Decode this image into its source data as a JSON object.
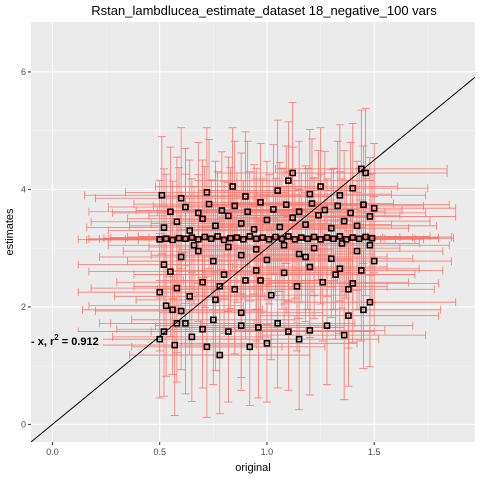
{
  "chart_data": {
    "type": "scatter",
    "title": "Rstan_lambdlucea_estimate_dataset 18_negative_100 vars",
    "xlabel": "original",
    "ylabel": "estimates",
    "xlim": [
      -0.1,
      1.97
    ],
    "ylim": [
      -0.3,
      6.85
    ],
    "x_ticks": [
      0.0,
      0.5,
      1.0,
      1.5
    ],
    "x_tick_labels": [
      "0.0",
      "0.5",
      "1.0",
      "1.5"
    ],
    "y_ticks": [
      0,
      2,
      4,
      6
    ],
    "y_tick_labels": [
      "0",
      "2",
      "4",
      "6"
    ],
    "grid": true,
    "legend": "none",
    "reference_line": {
      "slope": 3,
      "intercept": 0
    },
    "annotation": {
      "text_prefix": "- x,  r",
      "sup": "2",
      "text_suffix": " = 0.912"
    },
    "error_bar_color": "#f8766d",
    "point_color": "#000000",
    "panel_color": "#ebebeb",
    "points": [
      [
        0.5,
        1.45,
        0.35,
        1.0
      ],
      [
        0.52,
        1.58,
        0.4,
        1.1
      ],
      [
        0.57,
        1.35,
        0.38,
        1.2
      ],
      [
        0.58,
        1.72,
        0.36,
        1.0
      ],
      [
        0.56,
        1.95,
        0.42,
        1.1
      ],
      [
        0.62,
        1.72,
        0.35,
        1.2
      ],
      [
        0.6,
        1.93,
        0.4,
        1.0
      ],
      [
        0.65,
        1.49,
        0.37,
        1.1
      ],
      [
        0.7,
        1.62,
        0.4,
        1.0
      ],
      [
        0.72,
        1.32,
        0.35,
        1.2
      ],
      [
        0.75,
        1.78,
        0.38,
        1.1
      ],
      [
        0.78,
        1.18,
        0.42,
        1.0
      ],
      [
        0.82,
        1.58,
        0.36,
        1.2
      ],
      [
        0.88,
        1.68,
        0.4,
        1.1
      ],
      [
        0.92,
        1.32,
        0.35,
        1.0
      ],
      [
        0.88,
        1.9,
        0.38,
        1.1
      ],
      [
        0.96,
        1.65,
        0.4,
        1.2
      ],
      [
        1.0,
        1.38,
        0.42,
        1.0
      ],
      [
        1.05,
        1.72,
        0.36,
        1.1
      ],
      [
        1.1,
        1.58,
        0.4,
        1.0
      ],
      [
        1.15,
        1.45,
        0.37,
        1.2
      ],
      [
        1.2,
        1.6,
        0.35,
        1.1
      ],
      [
        1.28,
        1.68,
        0.4,
        1.0
      ],
      [
        1.36,
        1.52,
        0.38,
        1.1
      ],
      [
        1.38,
        1.85,
        0.42,
        1.2
      ],
      [
        1.45,
        1.95,
        0.36,
        1.0
      ],
      [
        1.48,
        2.08,
        0.4,
        1.1
      ],
      [
        0.5,
        2.25,
        0.38,
        1.0
      ],
      [
        0.53,
        2.02,
        0.36,
        1.2
      ],
      [
        0.58,
        2.32,
        0.4,
        1.1
      ],
      [
        0.64,
        2.18,
        0.35,
        1.0
      ],
      [
        0.7,
        2.42,
        0.4,
        1.1
      ],
      [
        0.76,
        2.12,
        0.37,
        1.2
      ],
      [
        0.8,
        2.55,
        0.42,
        1.0
      ],
      [
        0.85,
        2.3,
        0.36,
        1.1
      ],
      [
        0.9,
        2.45,
        0.38,
        1.0
      ],
      [
        0.95,
        2.62,
        0.4,
        1.2
      ],
      [
        1.02,
        2.2,
        0.35,
        1.1
      ],
      [
        1.08,
        2.58,
        0.38,
        1.0
      ],
      [
        1.14,
        2.35,
        0.42,
        1.1
      ],
      [
        1.2,
        2.68,
        0.36,
        1.2
      ],
      [
        1.26,
        2.42,
        0.4,
        1.0
      ],
      [
        1.32,
        2.55,
        0.37,
        1.1
      ],
      [
        1.38,
        2.3,
        0.4,
        1.0
      ],
      [
        1.44,
        2.62,
        0.38,
        1.2
      ],
      [
        1.5,
        2.78,
        0.36,
        1.1
      ],
      [
        0.52,
        2.72,
        0.4,
        1.0
      ],
      [
        0.6,
        2.85,
        0.38,
        1.1
      ],
      [
        0.68,
        2.95,
        0.35,
        1.2
      ],
      [
        0.75,
        2.78,
        0.4,
        1.0
      ],
      [
        0.82,
        3.02,
        0.37,
        1.1
      ],
      [
        0.88,
        2.88,
        0.42,
        1.0
      ],
      [
        0.95,
        2.98,
        0.36,
        1.2
      ],
      [
        1.0,
        2.8,
        0.4,
        1.1
      ],
      [
        1.08,
        3.05,
        0.38,
        1.0
      ],
      [
        1.15,
        2.9,
        0.35,
        1.1
      ],
      [
        1.22,
        3.0,
        0.4,
        1.2
      ],
      [
        1.3,
        2.82,
        0.38,
        1.0
      ],
      [
        1.35,
        3.08,
        0.36,
        1.1
      ],
      [
        1.42,
        2.95,
        0.4,
        1.0
      ],
      [
        1.48,
        3.05,
        0.37,
        1.2
      ],
      [
        0.5,
        3.15,
        0.38,
        1.0
      ],
      [
        0.53,
        3.16,
        0.36,
        1.1
      ],
      [
        0.56,
        3.14,
        0.4,
        1.0
      ],
      [
        0.59,
        3.17,
        0.35,
        1.2
      ],
      [
        0.62,
        3.16,
        0.4,
        1.1
      ],
      [
        0.65,
        3.18,
        0.38,
        1.0
      ],
      [
        0.68,
        3.15,
        0.42,
        1.1
      ],
      [
        0.71,
        3.19,
        0.36,
        1.2
      ],
      [
        0.74,
        3.16,
        0.4,
        1.0
      ],
      [
        0.77,
        3.2,
        0.37,
        1.1
      ],
      [
        0.8,
        3.14,
        0.4,
        1.0
      ],
      [
        0.83,
        3.17,
        0.38,
        1.2
      ],
      [
        0.86,
        3.18,
        0.36,
        1.1
      ],
      [
        0.89,
        3.15,
        0.4,
        1.0
      ],
      [
        0.92,
        3.2,
        0.35,
        1.1
      ],
      [
        0.95,
        3.16,
        0.4,
        1.2
      ],
      [
        0.98,
        3.18,
        0.38,
        1.0
      ],
      [
        1.01,
        3.15,
        0.42,
        1.1
      ],
      [
        1.04,
        3.19,
        0.36,
        1.0
      ],
      [
        1.07,
        3.16,
        0.4,
        1.2
      ],
      [
        1.1,
        3.2,
        0.37,
        1.1
      ],
      [
        1.13,
        3.15,
        0.4,
        1.0
      ],
      [
        1.16,
        3.18,
        0.38,
        1.1
      ],
      [
        1.19,
        3.16,
        0.36,
        1.2
      ],
      [
        1.22,
        3.19,
        0.4,
        1.0
      ],
      [
        1.25,
        3.15,
        0.35,
        1.1
      ],
      [
        1.28,
        3.18,
        0.4,
        1.0
      ],
      [
        1.31,
        3.16,
        0.38,
        1.2
      ],
      [
        1.34,
        3.2,
        0.42,
        1.1
      ],
      [
        1.37,
        3.15,
        0.36,
        1.0
      ],
      [
        1.4,
        3.18,
        0.4,
        1.1
      ],
      [
        1.43,
        3.16,
        0.37,
        1.2
      ],
      [
        1.46,
        3.19,
        0.4,
        1.0
      ],
      [
        1.49,
        3.17,
        0.38,
        1.1
      ],
      [
        0.52,
        3.35,
        0.36,
        1.0
      ],
      [
        0.58,
        3.45,
        0.4,
        1.1
      ],
      [
        0.64,
        3.3,
        0.38,
        1.2
      ],
      [
        0.7,
        3.5,
        0.35,
        1.0
      ],
      [
        0.76,
        3.38,
        0.4,
        1.1
      ],
      [
        0.82,
        3.55,
        0.37,
        1.0
      ],
      [
        0.88,
        3.42,
        0.42,
        1.2
      ],
      [
        0.94,
        3.32,
        0.36,
        1.1
      ],
      [
        1.0,
        3.48,
        0.4,
        1.0
      ],
      [
        1.06,
        3.36,
        0.38,
        1.1
      ],
      [
        1.12,
        3.52,
        0.35,
        1.2
      ],
      [
        1.18,
        3.4,
        0.4,
        1.0
      ],
      [
        1.24,
        3.56,
        0.38,
        1.1
      ],
      [
        1.3,
        3.34,
        0.36,
        1.0
      ],
      [
        1.36,
        3.46,
        0.4,
        1.2
      ],
      [
        1.42,
        3.38,
        0.37,
        1.1
      ],
      [
        1.48,
        3.54,
        0.4,
        1.0
      ],
      [
        0.55,
        3.62,
        0.38,
        1.1
      ],
      [
        0.62,
        3.7,
        0.36,
        1.0
      ],
      [
        0.68,
        3.6,
        0.4,
        1.2
      ],
      [
        0.73,
        3.75,
        0.35,
        1.1
      ],
      [
        0.79,
        3.64,
        0.4,
        1.0
      ],
      [
        0.85,
        3.72,
        0.38,
        1.1
      ],
      [
        0.91,
        3.62,
        0.42,
        1.2
      ],
      [
        0.97,
        3.78,
        0.36,
        1.0
      ],
      [
        1.03,
        3.66,
        0.4,
        1.1
      ],
      [
        1.09,
        3.74,
        0.37,
        1.0
      ],
      [
        1.15,
        3.62,
        0.4,
        1.2
      ],
      [
        1.21,
        3.76,
        0.38,
        1.1
      ],
      [
        1.27,
        3.65,
        0.36,
        1.0
      ],
      [
        1.33,
        3.72,
        0.4,
        1.1
      ],
      [
        1.39,
        3.6,
        0.35,
        1.2
      ],
      [
        1.45,
        3.74,
        0.4,
        1.0
      ],
      [
        1.5,
        3.68,
        0.38,
        1.1
      ],
      [
        0.51,
        3.9,
        0.36,
        1.0
      ],
      [
        0.6,
        3.85,
        0.4,
        1.2
      ],
      [
        0.72,
        3.95,
        0.38,
        1.1
      ],
      [
        0.84,
        4.05,
        0.36,
        1.0
      ],
      [
        0.9,
        3.88,
        0.4,
        1.1
      ],
      [
        1.05,
        3.98,
        0.37,
        1.2
      ],
      [
        1.1,
        4.15,
        0.4,
        1.0
      ],
      [
        1.2,
        3.92,
        0.38,
        1.1
      ],
      [
        1.25,
        4.05,
        0.36,
        1.0
      ],
      [
        1.34,
        3.9,
        0.4,
        1.2
      ],
      [
        1.4,
        4.02,
        0.35,
        1.1
      ],
      [
        1.44,
        4.35,
        0.4,
        1.0
      ],
      [
        1.46,
        4.28,
        0.38,
        1.1
      ],
      [
        1.12,
        4.28,
        0.36,
        1.2
      ],
      [
        0.66,
        3.05,
        0.4,
        1.0
      ],
      [
        1.18,
        2.85,
        0.38,
        1.1
      ],
      [
        0.97,
        2.45,
        0.36,
        1.0
      ],
      [
        0.78,
        2.35,
        0.4,
        1.2
      ],
      [
        1.34,
        2.65,
        0.37,
        1.1
      ],
      [
        1.4,
        2.4,
        0.4,
        1.0
      ],
      [
        0.55,
        2.6,
        0.38,
        1.1
      ]
    ]
  }
}
